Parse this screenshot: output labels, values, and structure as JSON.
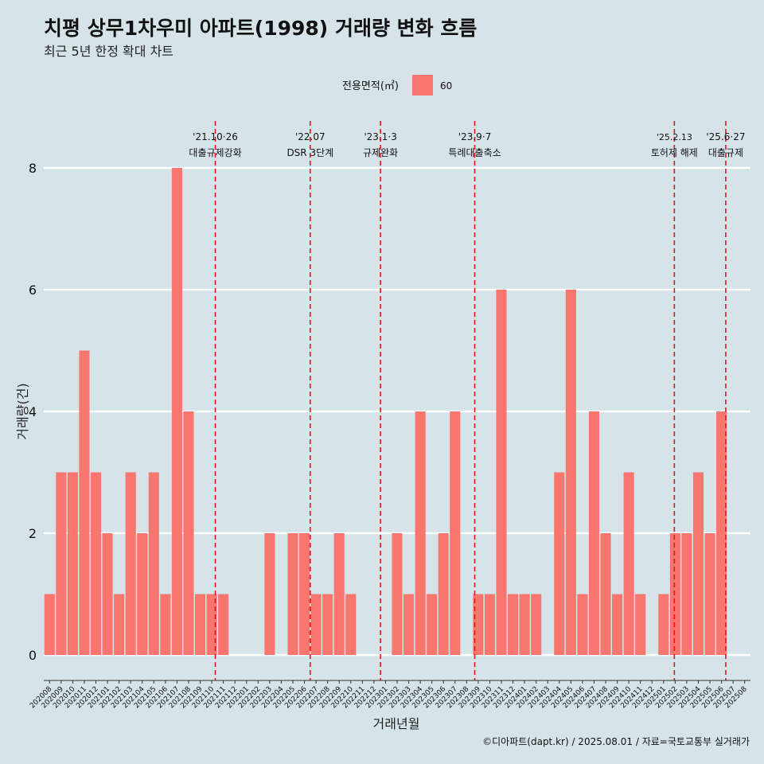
{
  "header": {
    "title": "치평 상무1차우미 아파트(1998) 거래량 변화 흐름",
    "subtitle": "최근 5년 한정 확대 차트"
  },
  "legend": {
    "title": "전용면적(㎡)",
    "items": [
      {
        "label": "60",
        "color": "#f8766d"
      }
    ]
  },
  "caption": "©디아파트(dapt.kr) / 2025.08.01 / 자료=국토교통부 실거래가",
  "colors": {
    "background": "#d6e4ea",
    "bar": "#f8766d",
    "event_line": "#e8141c",
    "grid": "#ffffff"
  },
  "chart_data": {
    "type": "bar",
    "xlabel": "거래년월",
    "ylabel": "거래량(건)",
    "ylim": [
      0,
      8
    ],
    "yticks": [
      0,
      2,
      4,
      6,
      8
    ],
    "grid": true,
    "legend_position": "top",
    "categories": [
      "202008",
      "202009",
      "202010",
      "202011",
      "202012",
      "202101",
      "202102",
      "202103",
      "202104",
      "202105",
      "202106",
      "202107",
      "202108",
      "202109",
      "202110",
      "202111",
      "202112",
      "202201",
      "202202",
      "202203",
      "202204",
      "202205",
      "202206",
      "202207",
      "202208",
      "202209",
      "202210",
      "202211",
      "202212",
      "202301",
      "202302",
      "202303",
      "202304",
      "202305",
      "202306",
      "202307",
      "202308",
      "202309",
      "202310",
      "202311",
      "202312",
      "202401",
      "202402",
      "202403",
      "202404",
      "202405",
      "202406",
      "202407",
      "202408",
      "202409",
      "202410",
      "202411",
      "202412",
      "202501",
      "202502",
      "202503",
      "202504",
      "202505",
      "202506",
      "202507",
      "202508"
    ],
    "series": [
      {
        "name": "60",
        "values": [
          1,
          3,
          3,
          5,
          3,
          2,
          1,
          3,
          2,
          3,
          1,
          8,
          4,
          1,
          1,
          1,
          0,
          0,
          0,
          2,
          0,
          2,
          2,
          1,
          1,
          2,
          1,
          0,
          0,
          0,
          2,
          1,
          4,
          1,
          2,
          4,
          0,
          1,
          1,
          6,
          1,
          1,
          1,
          0,
          3,
          6,
          1,
          4,
          2,
          1,
          3,
          1,
          0,
          1,
          2,
          2,
          3,
          2,
          4,
          0,
          0
        ]
      }
    ],
    "annotations": [
      {
        "date_label": "'21.10·26",
        "text": "대출규제강화",
        "x": "2021-10-26"
      },
      {
        "date_label": "'22.07",
        "text": "DSR 3단계",
        "x": "2022-07-01"
      },
      {
        "date_label": "'23.1·3",
        "text": "규제완화",
        "x": "2023-01-03"
      },
      {
        "date_label": "'23.9·7",
        "text": "특례대출축소",
        "x": "2023-09-07"
      },
      {
        "date_label": "'25.2.13",
        "text": "토허제 해제",
        "x": "2025-02-13"
      },
      {
        "date_label": "'25.6·27",
        "text": "대출규제",
        "x": "2025-06-27"
      }
    ]
  }
}
